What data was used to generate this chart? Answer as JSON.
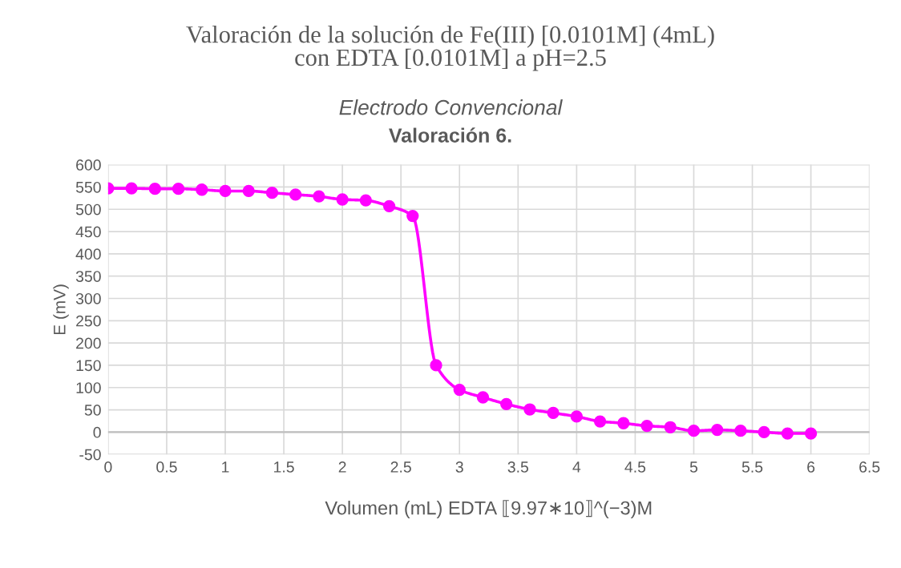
{
  "chart_data": {
    "type": "line",
    "title": "Valoración de la solución de Fe(III) [0.0101M] (4mL)\ncon EDTA [0.0101M] a pH=2.5",
    "subtitle": "Electrodo Convencional",
    "annotations": [
      "Valoración 6."
    ],
    "xlabel": "Volumen (mL) EDTA ⟦9.97∗10⟧^(−3)M",
    "ylabel": "E (mV)",
    "x": [
      0,
      0.2,
      0.4,
      0.6,
      0.8,
      1.0,
      1.2,
      1.4,
      1.6,
      1.8,
      2.0,
      2.2,
      2.4,
      2.6,
      2.8,
      3.0,
      3.2,
      3.4,
      3.6,
      3.8,
      4.0,
      4.2,
      4.4,
      4.6,
      4.8,
      5.0,
      5.2,
      5.4,
      5.6,
      5.8,
      6.0
    ],
    "series": [
      {
        "color": "#ff00ff",
        "values": [
          547,
          547,
          546,
          546,
          544,
          541,
          541,
          537,
          533,
          529,
          522,
          520,
          507,
          485,
          150,
          95,
          78,
          63,
          51,
          43,
          35,
          24,
          20,
          14,
          11,
          3,
          5,
          3,
          0,
          -3,
          -3
        ]
      }
    ],
    "xlim": [
      0,
      6.5
    ],
    "xticks": [
      0,
      0.5,
      1,
      1.5,
      2,
      2.5,
      3,
      3.5,
      4,
      4.5,
      5,
      5.5,
      6,
      6.5
    ],
    "ylim": [
      -50,
      600
    ],
    "yticks": [
      -50,
      0,
      50,
      100,
      150,
      200,
      250,
      300,
      350,
      400,
      450,
      500,
      550,
      600
    ],
    "grid": true,
    "marker": "circle",
    "line_style": "solid"
  }
}
